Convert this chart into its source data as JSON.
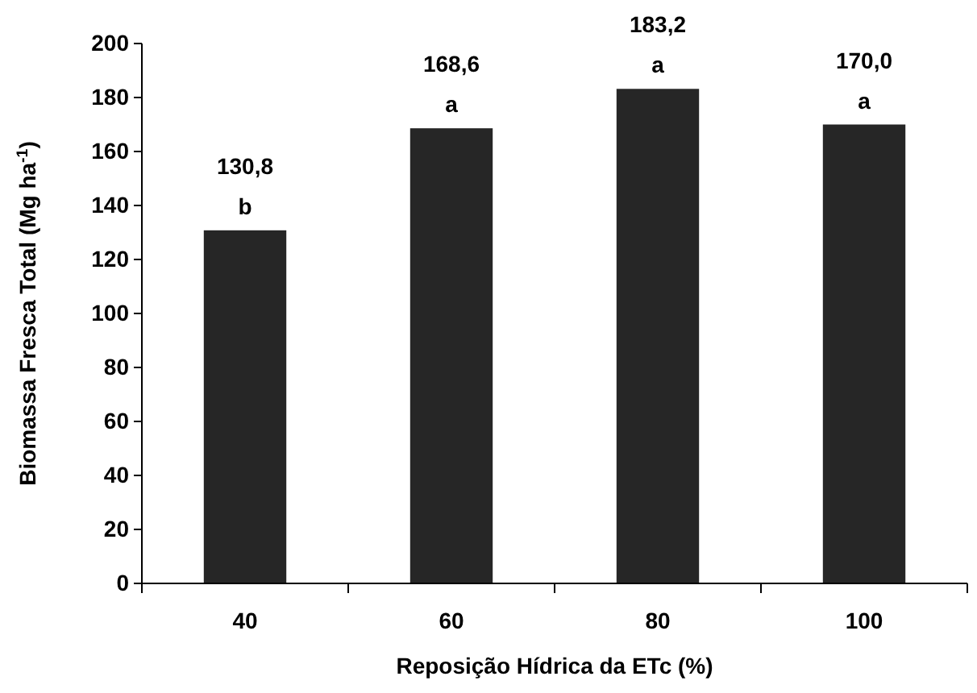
{
  "chart_data": {
    "type": "bar",
    "xlabel": "Reposição Hídrica da ETc (%)",
    "ylabel": "Biomassa Fresca Total (Mg ha$^{-1}$)",
    "categories": [
      "40",
      "60",
      "80",
      "100"
    ],
    "values": [
      130.8,
      168.6,
      183.2,
      170.0
    ],
    "value_labels": [
      "130,8",
      "168,6",
      "183,2",
      "170,0"
    ],
    "color": "#262626",
    "ylim": [
      0,
      200
    ],
    "yticks": [
      0,
      20,
      40,
      60,
      80,
      100,
      120,
      140,
      160,
      180,
      200
    ],
    "annotations": [
      {
        "text": "b",
        "x": "40",
        "y": 130.8
      },
      {
        "text": "a",
        "x": "60",
        "y": 168.6
      },
      {
        "text": "a",
        "x": "80",
        "y": 183.2
      },
      {
        "text": "a",
        "x": "100",
        "y": 170.0
      }
    ]
  }
}
